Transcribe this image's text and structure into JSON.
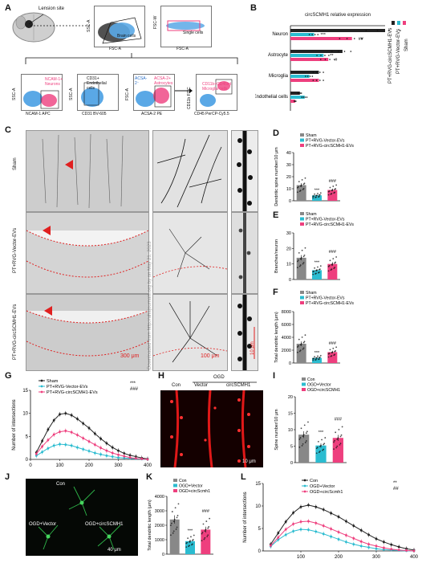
{
  "panels": {
    "A": "A",
    "B": "B",
    "C": "C",
    "D": "D",
    "E": "E",
    "F": "F",
    "G": "G",
    "H": "H",
    "I": "I",
    "J": "J",
    "K": "K",
    "L": "L"
  },
  "panel_a": {
    "lension_site": "Lension site",
    "ssc_a": "SSC-A",
    "fsc_a": "FSC-A",
    "fsc_w": "FSC-W",
    "brain_cells": "Brain cells",
    "single_cells": "Single cells",
    "ncam_gate": "NCAM-1+ Neurons",
    "cd31_gate": "CD31+ Endothelial cells",
    "acsa_gate": "ACSA-2+ Astrocytes",
    "cd11b_gate": "CD11b+CD45int Microglia cells",
    "ncam_axis": "NCAM-1 APC",
    "cd31_axis": "CD31 BV-605",
    "acsa_axis": "ACSA-2 PE",
    "cd45_axis": "CD45 PerCP-Cy5.5",
    "cd11b_axis": "CD11b FITC",
    "ssc": "SSC-A",
    "fsc": "FSC-A"
  },
  "panel_b": {
    "title": "circSCMH1 relative expression",
    "legend": [
      "Sham",
      "PT+RVG-Vector-EVs",
      "PT+RVG-circSCMH1-EVs"
    ]
  },
  "panel_c": {
    "rows": [
      "Sham",
      "PT+RVG-Vector-EVs",
      "PT+RVG-circSCMH1-EVs"
    ],
    "scale_300": "300 μm",
    "scale_100": "100 μm",
    "scale_10": "10 μm",
    "watermark": "Downloaded from http://ahajournals.org by on May 21, 2023"
  },
  "panel_h": {
    "con": "Con",
    "ogd": "OGD",
    "vector": "Vector",
    "circ": "circSCMH1",
    "scale": "10 μm"
  },
  "panel_j": {
    "con": "Con",
    "ogd_vector": "OGD+Vector",
    "ogd_circ": "OGD+circSCMH1",
    "scale": "40 μm"
  },
  "colors": {
    "sham": "#888888",
    "vector": "#2bbcd0",
    "circ": "#ee3f7e",
    "dark": "#222222"
  },
  "chart_data": [
    {
      "id": "B",
      "type": "bar",
      "orientation": "horizontal",
      "title": "circSCMH1 relative expression",
      "categories": [
        "Neuron",
        "Astrocyte",
        "Microglia",
        "Endothelial cells"
      ],
      "xlim": [
        0,
        1.0
      ],
      "series": [
        {
          "name": "Sham",
          "values": [
            1.0,
            0.55,
            0.3,
            0.1
          ]
        },
        {
          "name": "PT+RVG-Vector-EVs",
          "values": [
            0.25,
            0.35,
            0.2,
            0.15
          ]
        },
        {
          "name": "PT+RVG-circSCMH1-EVs",
          "values": [
            0.65,
            0.4,
            0.3,
            0.05
          ]
        }
      ],
      "sig": {
        "vector": [
          "***",
          "**",
          "",
          ""
        ],
        "circ": [
          "##",
          "#",
          "",
          ""
        ]
      }
    },
    {
      "id": "D",
      "type": "bar",
      "ylabel": "Dendritic spine number/10 μm",
      "ylim": [
        0,
        40
      ],
      "yticks": [
        0,
        10,
        20,
        30,
        40
      ],
      "categories": [
        "Sham",
        "PT+RVG-Vector-EVs",
        "PT+RVG-circSCMH1-EVs"
      ],
      "values": [
        13,
        4.5,
        9
      ],
      "sig": [
        "",
        "***",
        "###"
      ]
    },
    {
      "id": "E",
      "type": "bar",
      "ylabel": "Branches/neuron",
      "ylim": [
        0,
        30
      ],
      "yticks": [
        0,
        10,
        20,
        30
      ],
      "categories": [
        "Sham",
        "PT+RVG-Vector-EVs",
        "PT+RVG-circSCMH1-EVs"
      ],
      "values": [
        14,
        6,
        10
      ],
      "sig": [
        "",
        "***",
        "###"
      ]
    },
    {
      "id": "F",
      "type": "bar",
      "ylabel": "Total dendritic length (μm)",
      "ylim": [
        0,
        8000
      ],
      "yticks": [
        0,
        2000,
        4000,
        6000,
        8000
      ],
      "categories": [
        "Sham",
        "PT+RVG-Vector-EVs",
        "PT+RVG-circSCMH1-EVs"
      ],
      "values": [
        3000,
        800,
        1700
      ],
      "sig": [
        "",
        "***",
        "###"
      ]
    },
    {
      "id": "G",
      "type": "line",
      "ylabel": "Number of intersections",
      "xlim": [
        0,
        400
      ],
      "ylim": [
        0,
        15
      ],
      "xticks": [
        0,
        100,
        200,
        300,
        400
      ],
      "yticks": [
        0,
        5,
        10,
        15
      ],
      "x": [
        20,
        40,
        60,
        80,
        100,
        120,
        140,
        160,
        180,
        200,
        220,
        240,
        260,
        280,
        300,
        320,
        340,
        360,
        380,
        400
      ],
      "series": [
        {
          "name": "Sham",
          "values": [
            1.5,
            4,
            6.5,
            8.5,
            9.8,
            10,
            9.6,
            8.8,
            7.8,
            6.8,
            5.6,
            4.5,
            3.5,
            2.6,
            1.9,
            1.3,
            0.9,
            0.6,
            0.3,
            0.1
          ]
        },
        {
          "name": "PT+RVG-Vector-EVs",
          "values": [
            0.8,
            1.6,
            2.4,
            3,
            3.3,
            3.2,
            3,
            2.6,
            2.2,
            1.8,
            1.4,
            1.1,
            0.8,
            0.6,
            0.4,
            0.3,
            0.2,
            0.1,
            0.05,
            0
          ]
        },
        {
          "name": "PT+RVG-circSCMH1-EVs",
          "values": [
            1.2,
            2.8,
            4.2,
            5.4,
            6,
            6.2,
            5.9,
            5.3,
            4.6,
            3.9,
            3.2,
            2.5,
            1.9,
            1.4,
            1,
            0.7,
            0.4,
            0.2,
            0.1,
            0
          ]
        }
      ],
      "sig": [
        "***",
        "###"
      ]
    },
    {
      "id": "I",
      "type": "bar",
      "ylabel": "Spine number/10 μm",
      "ylim": [
        0,
        20
      ],
      "yticks": [
        0,
        5,
        10,
        15,
        20
      ],
      "categories": [
        "Con",
        "OGD+Vector",
        "OGD+circSCMH1"
      ],
      "values": [
        8.5,
        5.2,
        7.5
      ],
      "sig": [
        "",
        "***",
        "###"
      ]
    },
    {
      "id": "K",
      "type": "bar",
      "ylabel": "Total dendritic length (μm)",
      "ylim": [
        0,
        4000
      ],
      "yticks": [
        0,
        1000,
        2000,
        3000,
        4000
      ],
      "categories": [
        "Con",
        "OGD+Vector",
        "OGD+circScmh1"
      ],
      "values": [
        2400,
        900,
        1700
      ],
      "sig": [
        "",
        "***",
        "###"
      ]
    },
    {
      "id": "L",
      "type": "line",
      "ylabel": "Number of intersections",
      "xlim": [
        0,
        400
      ],
      "ylim": [
        0,
        15
      ],
      "xticks": [
        100,
        200,
        300,
        400
      ],
      "yticks": [
        0,
        5,
        10,
        15
      ],
      "x": [
        20,
        40,
        60,
        80,
        100,
        120,
        140,
        160,
        180,
        200,
        220,
        240,
        260,
        280,
        300,
        320,
        340,
        360,
        380,
        400
      ],
      "series": [
        {
          "name": "Con",
          "values": [
            1.5,
            4,
            6.5,
            8.5,
            9.8,
            10.2,
            9.8,
            9.2,
            8.4,
            7.6,
            6.6,
            5.6,
            4.6,
            3.6,
            2.7,
            2,
            1.4,
            0.9,
            0.5,
            0.2
          ]
        },
        {
          "name": "OGD+Vector",
          "values": [
            1,
            2.5,
            3.6,
            4.4,
            4.8,
            4.7,
            4.3,
            3.8,
            3.2,
            2.6,
            2,
            1.5,
            1.1,
            0.8,
            0.5,
            0.3,
            0.2,
            0.1,
            0,
            0
          ]
        },
        {
          "name": "OGD+circScmh1",
          "values": [
            1.2,
            3,
            4.8,
            6,
            6.5,
            6.6,
            6.2,
            5.6,
            4.9,
            4.2,
            3.5,
            2.8,
            2.1,
            1.5,
            1.1,
            0.7,
            0.4,
            0.2,
            0.1,
            0
          ]
        }
      ],
      "sig": [
        "**",
        "##"
      ]
    }
  ]
}
